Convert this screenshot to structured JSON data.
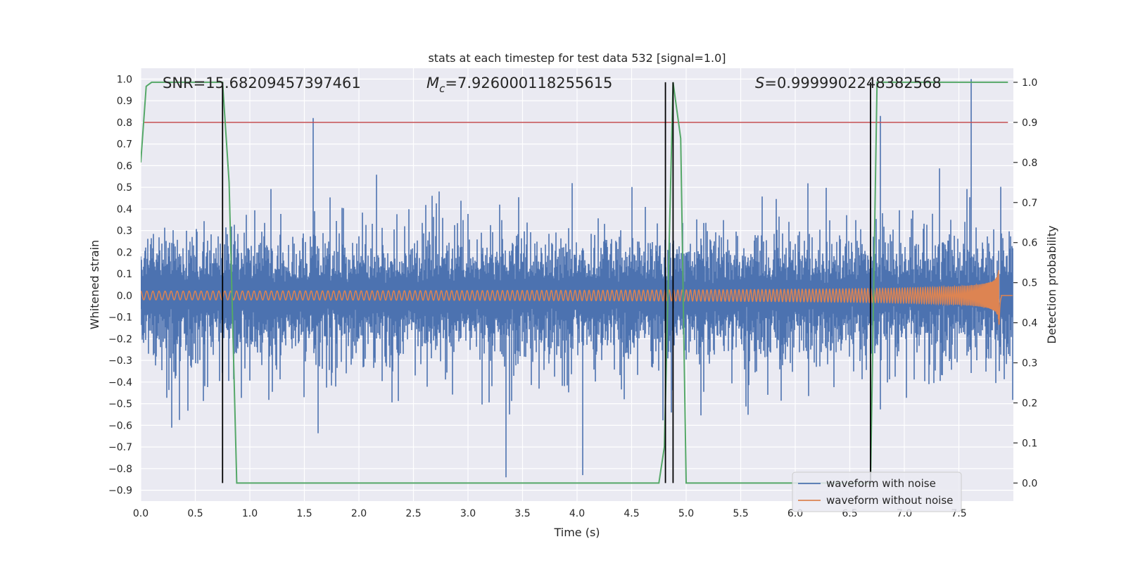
{
  "chart_data": {
    "type": "line",
    "title": "stats at each timestep for test data 532 [signal=1.0]",
    "xlabel": "Time (s)",
    "ylabel": "Whitened strain",
    "y2label": "Detection probability",
    "xlim": [
      0.0,
      8.0
    ],
    "ylim": [
      -0.95,
      1.05
    ],
    "y2lim": [
      -0.045,
      1.035
    ],
    "xticks": [
      "0.0",
      "0.5",
      "1.0",
      "1.5",
      "2.0",
      "2.5",
      "3.0",
      "3.5",
      "4.0",
      "4.5",
      "5.0",
      "5.5",
      "6.0",
      "6.5",
      "7.0",
      "7.5"
    ],
    "yticks": [
      "1.0",
      "0.9",
      "0.8",
      "0.7",
      "0.6",
      "0.5",
      "0.4",
      "0.3",
      "0.2",
      "0.1",
      "0.0",
      "-0.1",
      "-0.2",
      "-0.3",
      "-0.4",
      "-0.5",
      "-0.6",
      "-0.7",
      "-0.8",
      "-0.9"
    ],
    "y2ticks": [
      "1.0",
      "0.9",
      "0.8",
      "0.7",
      "0.6",
      "0.5",
      "0.4",
      "0.3",
      "0.2",
      "0.1",
      "0.0"
    ],
    "annotations": {
      "snr": "SNR=15.68209457397461",
      "mc_symbol": "M",
      "mc_sub": "c",
      "mc_value": "=7.926000118255615",
      "s_symbol": "S",
      "s_value": "=0.9999902248382568"
    },
    "series": [
      {
        "name": "waveform with noise",
        "color": "#4c72b0",
        "description_envelope": {
          "typical_upper": 0.35,
          "typical_lower": -0.4,
          "spike_max": 1.0,
          "spike_max_time": 7.61,
          "spike_min": -0.84
        }
      },
      {
        "name": "waveform without noise",
        "color": "#dd8452",
        "chirp": {
          "start_amplitude": 0.02,
          "peak_amplitude": 0.41,
          "merger_time": 7.87,
          "end_time": 8.0
        }
      }
    ],
    "detection_probability": {
      "color": "#55a868",
      "t": [
        0.0,
        0.05,
        0.1,
        0.2,
        0.3,
        0.4,
        0.5,
        0.6,
        0.7,
        0.75,
        0.81,
        0.88,
        1.0,
        2.0,
        3.0,
        4.0,
        4.5,
        4.75,
        4.8,
        4.88,
        4.95,
        5.0,
        5.5,
        6.0,
        6.5,
        6.69,
        6.75,
        6.8,
        7.0,
        7.5,
        7.95
      ],
      "p": [
        0.8,
        0.99,
        1.0,
        1.0,
        1.0,
        1.0,
        1.0,
        1.0,
        1.0,
        1.0,
        0.75,
        0.0,
        0.0,
        0.0,
        0.0,
        0.0,
        0.0,
        0.0,
        0.09,
        1.0,
        0.86,
        0.0,
        0.0,
        0.0,
        0.0,
        0.0,
        1.0,
        1.0,
        1.0,
        1.0,
        1.0
      ]
    },
    "threshold": {
      "value": 0.9,
      "color": "#c44e52"
    },
    "vertical_markers": [
      0.75,
      4.81,
      4.88,
      6.69
    ],
    "legend": {
      "position": "bottom-right",
      "entries": [
        "waveform with noise",
        "waveform without noise"
      ]
    },
    "grid": true
  }
}
